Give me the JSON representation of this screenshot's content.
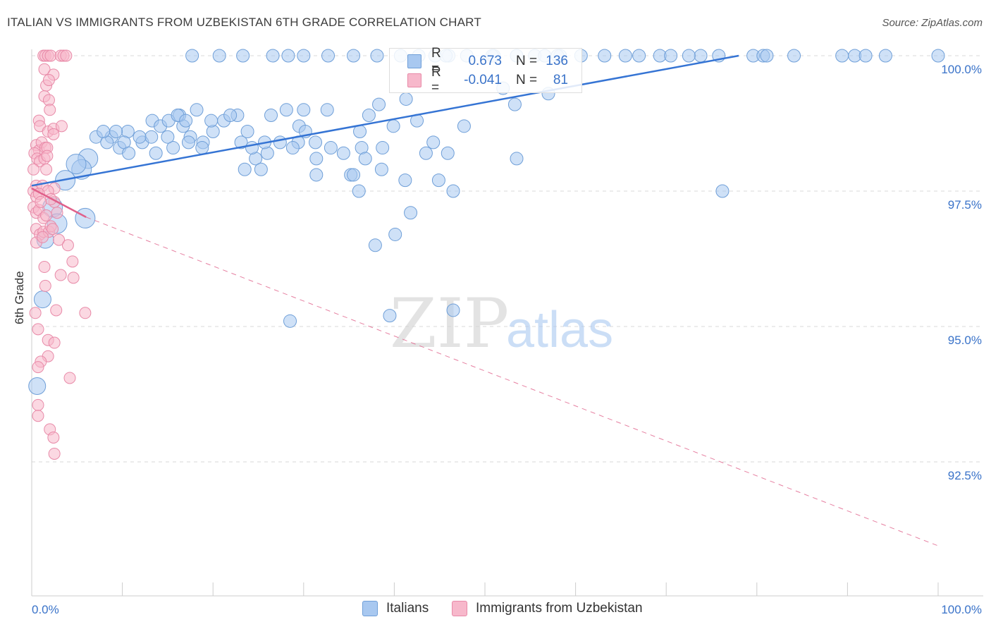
{
  "title": "ITALIAN VS IMMIGRANTS FROM UZBEKISTAN 6TH GRADE CORRELATION CHART",
  "source": "Source: ZipAtlas.com",
  "watermark": {
    "zip": "ZIP",
    "atlas": "atlas"
  },
  "legend_top": {
    "italians": {
      "r_label": "R =",
      "r_value": "0.673",
      "n_label": "N =",
      "n_value": "136"
    },
    "uzbek": {
      "r_label": "R =",
      "r_value": "-0.041",
      "n_label": "N =",
      "n_value": "81"
    }
  },
  "legend_bottom": {
    "italians": "Italians",
    "uzbek": "Immigrants from Uzbekistan"
  },
  "colors": {
    "blue_fill": "#a8c8f0",
    "blue_stroke": "#6f9fd8",
    "blue_line": "#3574d4",
    "pink_fill": "#f7b8cb",
    "pink_stroke": "#e88aa8",
    "pink_line": "#e0608a",
    "axis_text": "#3a73c9",
    "grid": "#d9d9d9"
  },
  "chart_data": {
    "type": "scatter",
    "title": "ITALIAN VS IMMIGRANTS FROM UZBEKISTAN 6TH GRADE CORRELATION CHART",
    "xlabel": "",
    "ylabel": "6th Grade",
    "xlim": [
      0,
      100
    ],
    "ylim": [
      90.0,
      100.35
    ],
    "x_tick_labels": [
      "0.0%",
      "100.0%"
    ],
    "y_ticks": [
      92.5,
      95.0,
      97.5,
      100.0
    ],
    "y_tick_labels": [
      "92.5%",
      "95.0%",
      "97.5%",
      "100.0%"
    ],
    "grid": true,
    "series": [
      {
        "name": "Italians",
        "points": [
          [
            17.7,
            100
          ],
          [
            20.7,
            100
          ],
          [
            23.3,
            100
          ],
          [
            26.6,
            100
          ],
          [
            30,
            100
          ],
          [
            32.7,
            100
          ],
          [
            35.5,
            100
          ],
          [
            38.1,
            100
          ],
          [
            40.7,
            100
          ],
          [
            42.7,
            100
          ],
          [
            44.5,
            100
          ],
          [
            46,
            100
          ],
          [
            48,
            100
          ],
          [
            51,
            100
          ],
          [
            53.5,
            100
          ],
          [
            55.5,
            100
          ],
          [
            58.3,
            100
          ],
          [
            60.6,
            100
          ],
          [
            63.2,
            100
          ],
          [
            67,
            100
          ],
          [
            69.3,
            100
          ],
          [
            70.5,
            100
          ],
          [
            73.8,
            100
          ],
          [
            75.8,
            100
          ],
          [
            79.6,
            100
          ],
          [
            80.7,
            100
          ],
          [
            81.1,
            100
          ],
          [
            84.1,
            100
          ],
          [
            89.4,
            100
          ],
          [
            90.8,
            100
          ],
          [
            92,
            100
          ],
          [
            94.2,
            100
          ],
          [
            100,
            100
          ],
          [
            28.3,
            100
          ],
          [
            45.7,
            100
          ],
          [
            56.6,
            100
          ],
          [
            65.5,
            100
          ],
          [
            72.5,
            100
          ],
          [
            58,
            100
          ],
          [
            50.8,
            100
          ],
          [
            52,
            99.4
          ],
          [
            41.3,
            99.2
          ],
          [
            33,
            98.3
          ],
          [
            38.3,
            99.1
          ],
          [
            43.5,
            98.2
          ],
          [
            30,
            99.0
          ],
          [
            29.4,
            98.4
          ],
          [
            28.1,
            99.0
          ],
          [
            29.5,
            98.7
          ],
          [
            30.2,
            98.6
          ],
          [
            31.3,
            98.4
          ],
          [
            32.6,
            99
          ],
          [
            34.4,
            98.2
          ],
          [
            35.2,
            97.8
          ],
          [
            36.2,
            98.6
          ],
          [
            37.2,
            98.9
          ],
          [
            38.7,
            98.3
          ],
          [
            39.9,
            98.7
          ],
          [
            42.5,
            98.8
          ],
          [
            22.7,
            98.9
          ],
          [
            23.8,
            98.6
          ],
          [
            26,
            98.2
          ],
          [
            24.7,
            98.1
          ],
          [
            21.2,
            98.8
          ],
          [
            20,
            98.6
          ],
          [
            18.9,
            98.4
          ],
          [
            17.5,
            98.5
          ],
          [
            16.7,
            98.7
          ],
          [
            15.6,
            98.3
          ],
          [
            13.7,
            98.2
          ],
          [
            12.2,
            98.4
          ],
          [
            10.6,
            98.6
          ],
          [
            9.7,
            98.3
          ],
          [
            8.8,
            98.5
          ],
          [
            7.1,
            98.5
          ],
          [
            6.2,
            98.1
          ],
          [
            5.5,
            97.9
          ],
          [
            4.9,
            98.0
          ],
          [
            13.2,
            98.5
          ],
          [
            13.3,
            98.8
          ],
          [
            15,
            98.5
          ],
          [
            16.3,
            98.9
          ],
          [
            17.3,
            98.4
          ],
          [
            18.8,
            98.3
          ],
          [
            19.8,
            98.8
          ],
          [
            21.9,
            98.9
          ],
          [
            23.1,
            98.4
          ],
          [
            24.3,
            98.3
          ],
          [
            25.7,
            98.4
          ],
          [
            27.4,
            98.4
          ],
          [
            28.8,
            98.3
          ],
          [
            10.2,
            98.4
          ],
          [
            9.3,
            98.6
          ],
          [
            8.3,
            98.4
          ],
          [
            7.9,
            98.6
          ],
          [
            10.7,
            98.2
          ],
          [
            11.9,
            98.5
          ],
          [
            14.2,
            98.7
          ],
          [
            15.1,
            98.8
          ],
          [
            16.1,
            98.9
          ],
          [
            17,
            98.8
          ],
          [
            18.2,
            99
          ],
          [
            26.4,
            98.9
          ],
          [
            31.4,
            98.1
          ],
          [
            36.4,
            98.3
          ],
          [
            44.3,
            98.4
          ],
          [
            53.3,
            99.1
          ],
          [
            57,
            99.3
          ],
          [
            3.7,
            97.7
          ],
          [
            2.3,
            97.2
          ],
          [
            2.8,
            96.9
          ],
          [
            1.5,
            96.6
          ],
          [
            1.2,
            95.5
          ],
          [
            0.6,
            93.9
          ],
          [
            5.9,
            97.0
          ],
          [
            38.6,
            97.9
          ],
          [
            36.8,
            98.1
          ],
          [
            45.9,
            98.2
          ],
          [
            23.5,
            97.9
          ],
          [
            25.3,
            97.9
          ],
          [
            31.4,
            97.8
          ],
          [
            35.5,
            97.8
          ],
          [
            47.7,
            98.7
          ],
          [
            36.1,
            97.5
          ],
          [
            41.2,
            97.7
          ],
          [
            46.5,
            97.5
          ],
          [
            41.8,
            97.1
          ],
          [
            44.9,
            97.7
          ],
          [
            37.9,
            96.5
          ],
          [
            39.5,
            95.2
          ],
          [
            46.5,
            95.3
          ],
          [
            76.2,
            97.5
          ],
          [
            53.5,
            98.1
          ],
          [
            40.1,
            96.7
          ],
          [
            28.5,
            95.1
          ]
        ]
      },
      {
        "name": "Immigrants from Uzbekistan",
        "points": [
          [
            1.3,
            100
          ],
          [
            1.5,
            100
          ],
          [
            1.8,
            100
          ],
          [
            2.1,
            100
          ],
          [
            3.2,
            100
          ],
          [
            3.5,
            100
          ],
          [
            3.8,
            100
          ],
          [
            1.4,
            99.75
          ],
          [
            2.4,
            99.65
          ],
          [
            1.6,
            99.45
          ],
          [
            1.9,
            99.55
          ],
          [
            1.4,
            99.25
          ],
          [
            1.9,
            99.18
          ],
          [
            2,
            99.0
          ],
          [
            0.8,
            98.8
          ],
          [
            0.9,
            98.7
          ],
          [
            1.8,
            98.6
          ],
          [
            2.4,
            98.65
          ],
          [
            3.3,
            98.7
          ],
          [
            2.4,
            98.55
          ],
          [
            0.5,
            98.35
          ],
          [
            0.8,
            98.25
          ],
          [
            1.1,
            98.4
          ],
          [
            1.5,
            98.3
          ],
          [
            1.7,
            98.3
          ],
          [
            0.3,
            98.2
          ],
          [
            0.6,
            98.1
          ],
          [
            0.9,
            98.05
          ],
          [
            1.4,
            98.1
          ],
          [
            1.7,
            98.15
          ],
          [
            0.2,
            97.9
          ],
          [
            1.6,
            97.9
          ],
          [
            0.5,
            97.6
          ],
          [
            0.2,
            97.5
          ],
          [
            0.5,
            97.4
          ],
          [
            0.2,
            97.2
          ],
          [
            0.5,
            97.1
          ],
          [
            0.8,
            97.15
          ],
          [
            1.3,
            97.0
          ],
          [
            1.6,
            97.05
          ],
          [
            0.5,
            96.8
          ],
          [
            0.9,
            96.7
          ],
          [
            1.3,
            96.75
          ],
          [
            1.9,
            96.75
          ],
          [
            0.5,
            96.55
          ],
          [
            1.2,
            96.65
          ],
          [
            2.5,
            97.55
          ],
          [
            2.5,
            97.3
          ],
          [
            2.8,
            97.1
          ],
          [
            1.2,
            97.6
          ],
          [
            1.8,
            97.5
          ],
          [
            2.1,
            97.35
          ],
          [
            0.8,
            97.45
          ],
          [
            2.1,
            96.85
          ],
          [
            2.3,
            96.8
          ],
          [
            1,
            97.3
          ],
          [
            3.0,
            96.6
          ],
          [
            4.0,
            96.5
          ],
          [
            4.5,
            96.2
          ],
          [
            1.4,
            96.1
          ],
          [
            4.6,
            95.9
          ],
          [
            3.2,
            95.95
          ],
          [
            1.5,
            95.75
          ],
          [
            0.4,
            95.25
          ],
          [
            2.7,
            95.3
          ],
          [
            5.9,
            95.25
          ],
          [
            0.7,
            94.95
          ],
          [
            1.8,
            94.75
          ],
          [
            2.5,
            94.7
          ],
          [
            1.8,
            94.45
          ],
          [
            1,
            94.35
          ],
          [
            0.7,
            94.25
          ],
          [
            4.2,
            94.05
          ],
          [
            0.7,
            93.55
          ],
          [
            0.7,
            93.35
          ],
          [
            2,
            93.1
          ],
          [
            2.4,
            92.95
          ],
          [
            2.5,
            92.65
          ]
        ]
      }
    ],
    "trend_lines": [
      {
        "series": "Italians",
        "from": [
          0,
          97.6
        ],
        "to": [
          78,
          100.0
        ]
      },
      {
        "series": "Immigrants from Uzbekistan",
        "from": [
          0,
          97.55
        ],
        "to": [
          6,
          97.02
        ],
        "dashed_to": [
          100,
          90.95
        ]
      }
    ]
  }
}
